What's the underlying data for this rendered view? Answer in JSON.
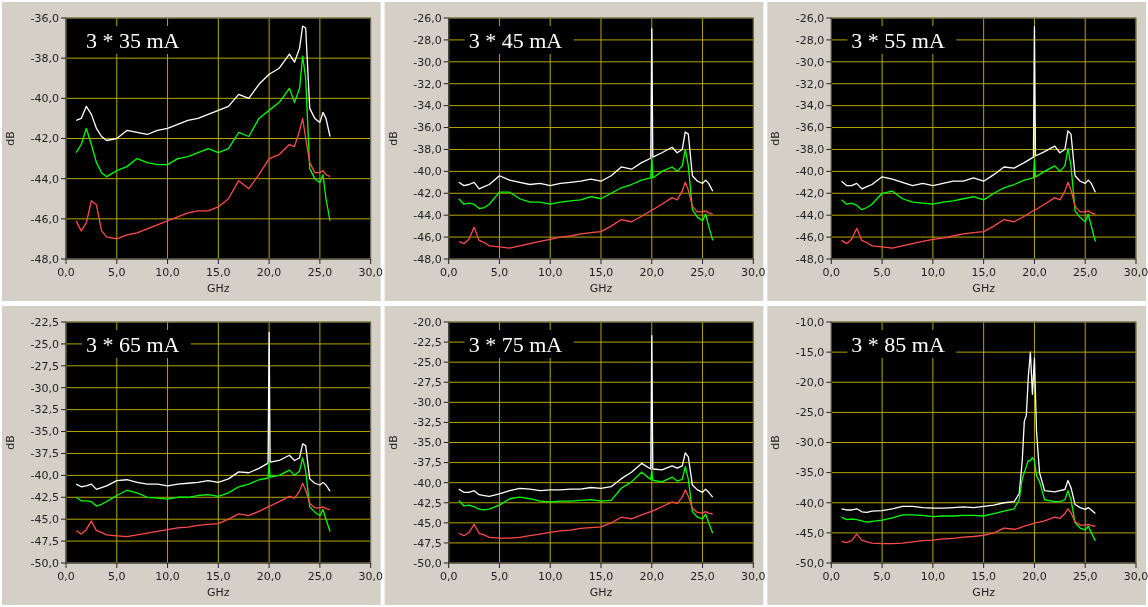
{
  "chart_data": [
    {
      "type": "line",
      "title": "3 * 35 mA",
      "xlabel": "GHz",
      "ylabel": "dB",
      "grid": true,
      "marker": "none",
      "line_style": "solid",
      "xlim": [
        0,
        30
      ],
      "xticks": [
        {
          "value": 0,
          "label": "0,0"
        },
        {
          "value": 5,
          "label": "5,0"
        },
        {
          "value": 10,
          "label": "10,0"
        },
        {
          "value": 15,
          "label": "15,0"
        },
        {
          "value": 20,
          "label": "20,0"
        },
        {
          "value": 25,
          "label": "25,0"
        },
        {
          "value": 30,
          "label": "30,0"
        }
      ],
      "ylim": [
        -48,
        -36
      ],
      "yticks": [
        {
          "value": -48,
          "label": "-48,0"
        },
        {
          "value": -46,
          "label": "-46,0"
        },
        {
          "value": -44,
          "label": "-44,0"
        },
        {
          "value": -42,
          "label": "-42,0"
        },
        {
          "value": -40,
          "label": "-40,0"
        },
        {
          "value": -38,
          "label": "-38,0"
        },
        {
          "value": -36,
          "label": "-36,0"
        }
      ],
      "x": [
        1,
        1.5,
        2,
        2.5,
        3,
        3.5,
        4,
        5,
        6,
        7,
        8,
        9,
        10,
        11,
        12,
        13,
        14,
        15,
        16,
        17,
        18,
        19,
        20,
        21,
        22,
        22.5,
        23,
        23.3,
        23.6,
        24,
        24.5,
        25,
        25.3,
        25.6,
        26
      ],
      "series": [
        {
          "color": "#ffffff",
          "values": [
            -41.1,
            -41.0,
            -40.4,
            -40.8,
            -41.5,
            -41.9,
            -42.1,
            -42.0,
            -41.6,
            -41.7,
            -41.8,
            -41.6,
            -41.5,
            -41.3,
            -41.1,
            -41.0,
            -40.8,
            -40.6,
            -40.4,
            -39.8,
            -40.0,
            -39.3,
            -38.8,
            -38.5,
            -37.8,
            -38.2,
            -37.5,
            -36.4,
            -36.5,
            -40.5,
            -41.0,
            -41.2,
            -40.7,
            -41.0,
            -41.9
          ]
        },
        {
          "color": "#00ff00",
          "values": [
            -42.7,
            -42.3,
            -41.5,
            -42.3,
            -43.2,
            -43.7,
            -43.9,
            -43.6,
            -43.4,
            -43.0,
            -43.2,
            -43.3,
            -43.3,
            -43.0,
            -42.9,
            -42.7,
            -42.5,
            -42.7,
            -42.5,
            -41.7,
            -41.9,
            -41.0,
            -40.6,
            -40.2,
            -39.5,
            -40.2,
            -39.5,
            -37.9,
            -39.0,
            -43.5,
            -44.0,
            -44.2,
            -43.8,
            -45.0,
            -46.1
          ]
        },
        {
          "color": "#ff4a4a",
          "values": [
            -46.1,
            -46.6,
            -46.2,
            -45.1,
            -45.3,
            -46.6,
            -46.9,
            -47.0,
            -46.8,
            -46.7,
            -46.5,
            -46.3,
            -46.1,
            -45.9,
            -45.7,
            -45.6,
            -45.6,
            -45.4,
            -45.0,
            -44.1,
            -44.5,
            -43.8,
            -43.0,
            -42.8,
            -42.3,
            -42.4,
            -41.6,
            -41.0,
            -42.0,
            -43.2,
            -43.7,
            -43.7,
            -43.6,
            -43.8,
            -43.9
          ]
        }
      ]
    },
    {
      "type": "line",
      "title": "3 * 45 mA",
      "xlabel": "GHz",
      "ylabel": "dB",
      "grid": true,
      "marker": "none",
      "line_style": "solid",
      "xlim": [
        0,
        30
      ],
      "xticks": [
        {
          "value": 0,
          "label": "0,0"
        },
        {
          "value": 5,
          "label": "5,0"
        },
        {
          "value": 10,
          "label": "10,0"
        },
        {
          "value": 15,
          "label": "15,0"
        },
        {
          "value": 20,
          "label": "20,0"
        },
        {
          "value": 25,
          "label": "25,0"
        },
        {
          "value": 30,
          "label": "30,0"
        }
      ],
      "ylim": [
        -48,
        -26
      ],
      "yticks": [
        {
          "value": -48,
          "label": "-48,0"
        },
        {
          "value": -46,
          "label": "-46,0"
        },
        {
          "value": -44,
          "label": "-44,0"
        },
        {
          "value": -42,
          "label": "-42,0"
        },
        {
          "value": -40,
          "label": "-40,0"
        },
        {
          "value": -38,
          "label": "-38,0"
        },
        {
          "value": -36,
          "label": "-36,0"
        },
        {
          "value": -34,
          "label": "-34,0"
        },
        {
          "value": -32,
          "label": "-32,0"
        },
        {
          "value": -30,
          "label": "-30,0"
        },
        {
          "value": -28,
          "label": "-28,0"
        },
        {
          "value": -26,
          "label": "-26,0"
        }
      ],
      "x": [
        1,
        1.5,
        2,
        2.5,
        3,
        3.5,
        4,
        5,
        6,
        7,
        8,
        9,
        10,
        11,
        12,
        13,
        14,
        15,
        16,
        17,
        18,
        19,
        19.9,
        20,
        20.1,
        21,
        22,
        22.5,
        23,
        23.3,
        23.6,
        24,
        24.5,
        25,
        25.3,
        25.6,
        26
      ],
      "series": [
        {
          "color": "#ffffff",
          "values": [
            -41.0,
            -41.3,
            -41.2,
            -41.0,
            -41.6,
            -41.4,
            -41.2,
            -40.4,
            -40.8,
            -41.0,
            -41.2,
            -41.1,
            -41.3,
            -41.1,
            -41.0,
            -40.9,
            -40.7,
            -40.9,
            -40.4,
            -39.6,
            -39.8,
            -39.2,
            -38.8,
            -27.0,
            -38.7,
            -38.3,
            -37.8,
            -38.3,
            -38.0,
            -36.4,
            -36.6,
            -40.4,
            -40.9,
            -41.1,
            -40.8,
            -41.1,
            -41.8
          ]
        },
        {
          "color": "#00ff00",
          "values": [
            -42.5,
            -43.0,
            -42.9,
            -43.0,
            -43.4,
            -43.3,
            -43.0,
            -41.9,
            -41.9,
            -42.5,
            -42.8,
            -42.8,
            -43.0,
            -42.8,
            -42.7,
            -42.6,
            -42.3,
            -42.5,
            -42.0,
            -41.5,
            -41.2,
            -40.8,
            -40.6,
            -38.7,
            -40.6,
            -40.0,
            -39.6,
            -40.0,
            -39.5,
            -38.0,
            -39.5,
            -43.5,
            -44.2,
            -44.5,
            -43.9,
            -45.0,
            -46.3
          ]
        },
        {
          "color": "#ff4a4a",
          "values": [
            -46.4,
            -46.6,
            -46.2,
            -45.1,
            -46.3,
            -46.5,
            -46.8,
            -46.9,
            -47.0,
            -46.8,
            -46.6,
            -46.4,
            -46.2,
            -46.0,
            -45.9,
            -45.7,
            -45.6,
            -45.5,
            -45.0,
            -44.4,
            -44.6,
            -44.1,
            -43.6,
            -43.5,
            -43.5,
            -43.0,
            -42.4,
            -42.6,
            -41.8,
            -41.0,
            -41.7,
            -43.2,
            -43.7,
            -43.7,
            -43.6,
            -43.8,
            -43.9
          ]
        }
      ]
    },
    {
      "type": "line",
      "title": "3 * 55 mA",
      "xlabel": "GHz",
      "ylabel": "dB",
      "grid": true,
      "marker": "none",
      "line_style": "solid",
      "xlim": [
        0,
        30
      ],
      "xticks": [
        {
          "value": 0,
          "label": "0,0"
        },
        {
          "value": 5,
          "label": "5,0"
        },
        {
          "value": 10,
          "label": "10,0"
        },
        {
          "value": 15,
          "label": "15,0"
        },
        {
          "value": 20,
          "label": "20,0"
        },
        {
          "value": 25,
          "label": "25,0"
        },
        {
          "value": 30,
          "label": "30,0"
        }
      ],
      "ylim": [
        -48,
        -26
      ],
      "yticks": [
        {
          "value": -48,
          "label": "-48,0"
        },
        {
          "value": -46,
          "label": "-46,0"
        },
        {
          "value": -44,
          "label": "-44,0"
        },
        {
          "value": -42,
          "label": "-42,0"
        },
        {
          "value": -40,
          "label": "-40,0"
        },
        {
          "value": -38,
          "label": "-38,0"
        },
        {
          "value": -36,
          "label": "-36,0"
        },
        {
          "value": -34,
          "label": "-34,0"
        },
        {
          "value": -32,
          "label": "-32,0"
        },
        {
          "value": -30,
          "label": "-30,0"
        },
        {
          "value": -28,
          "label": "-28,0"
        },
        {
          "value": -26,
          "label": "-26,0"
        }
      ],
      "x": [
        1,
        1.5,
        2,
        2.5,
        3,
        3.5,
        4,
        5,
        6,
        7,
        8,
        9,
        10,
        11,
        12,
        13,
        14,
        15,
        16,
        17,
        18,
        19,
        19.9,
        20,
        20.1,
        21,
        22,
        22.5,
        23,
        23.3,
        23.6,
        24,
        24.5,
        25,
        25.3,
        25.6,
        26
      ],
      "series": [
        {
          "color": "#ffffff",
          "values": [
            -40.9,
            -41.3,
            -41.3,
            -41.1,
            -41.6,
            -41.4,
            -41.2,
            -40.5,
            -40.7,
            -41.0,
            -41.3,
            -41.1,
            -41.3,
            -41.1,
            -40.9,
            -40.9,
            -40.6,
            -40.9,
            -40.3,
            -39.6,
            -39.7,
            -39.2,
            -38.7,
            -26.8,
            -38.6,
            -38.2,
            -37.7,
            -38.3,
            -38.0,
            -36.3,
            -36.6,
            -40.4,
            -40.9,
            -41.1,
            -40.8,
            -41.1,
            -41.9
          ]
        },
        {
          "color": "#00ff00",
          "values": [
            -42.6,
            -43.0,
            -42.9,
            -43.1,
            -43.5,
            -43.3,
            -43.0,
            -42.0,
            -41.8,
            -42.5,
            -42.8,
            -42.9,
            -43.0,
            -42.8,
            -42.7,
            -42.5,
            -42.3,
            -42.6,
            -42.0,
            -41.5,
            -41.2,
            -40.8,
            -40.6,
            -38.9,
            -40.5,
            -40.0,
            -39.5,
            -40.0,
            -39.5,
            -37.9,
            -39.5,
            -43.6,
            -44.2,
            -44.6,
            -43.9,
            -45.0,
            -46.4
          ]
        },
        {
          "color": "#ff4a4a",
          "values": [
            -46.3,
            -46.6,
            -46.2,
            -45.2,
            -46.3,
            -46.5,
            -46.8,
            -46.9,
            -47.0,
            -46.8,
            -46.6,
            -46.4,
            -46.2,
            -46.1,
            -45.9,
            -45.7,
            -45.6,
            -45.5,
            -45.0,
            -44.4,
            -44.6,
            -44.1,
            -43.6,
            -43.5,
            -43.5,
            -43.0,
            -42.4,
            -42.6,
            -41.8,
            -41.0,
            -41.7,
            -43.2,
            -43.7,
            -43.7,
            -43.6,
            -43.8,
            -43.9
          ]
        }
      ]
    },
    {
      "type": "line",
      "title": "3 * 65 mA",
      "xlabel": "GHz",
      "ylabel": "dB",
      "grid": true,
      "marker": "none",
      "line_style": "solid",
      "xlim": [
        0,
        30
      ],
      "xticks": [
        {
          "value": 0,
          "label": "0,0"
        },
        {
          "value": 5,
          "label": "5,0"
        },
        {
          "value": 10,
          "label": "10,0"
        },
        {
          "value": 15,
          "label": "15,0"
        },
        {
          "value": 20,
          "label": "20,0"
        },
        {
          "value": 25,
          "label": "25,0"
        },
        {
          "value": 30,
          "label": "30,0"
        }
      ],
      "ylim": [
        -50,
        -22.5
      ],
      "yticks": [
        {
          "value": -50,
          "label": "-50,0"
        },
        {
          "value": -47.5,
          "label": "-47,5"
        },
        {
          "value": -45,
          "label": "-45,0"
        },
        {
          "value": -42.5,
          "label": "-42,5"
        },
        {
          "value": -40,
          "label": "-40,0"
        },
        {
          "value": -37.5,
          "label": "-37,5"
        },
        {
          "value": -35,
          "label": "-35,0"
        },
        {
          "value": -32.5,
          "label": "-32,5"
        },
        {
          "value": -30,
          "label": "-30,0"
        },
        {
          "value": -27.5,
          "label": "-27,5"
        },
        {
          "value": -25,
          "label": "-25,0"
        },
        {
          "value": -22.5,
          "label": "-22,5"
        }
      ],
      "x": [
        1,
        1.5,
        2,
        2.5,
        3,
        3.5,
        4,
        5,
        6,
        7,
        8,
        9,
        10,
        11,
        12,
        13,
        14,
        15,
        16,
        17,
        18,
        19,
        19.9,
        20,
        20.1,
        21,
        22,
        22.5,
        23,
        23.3,
        23.6,
        24,
        24.5,
        25,
        25.3,
        25.6,
        26
      ],
      "series": [
        {
          "color": "#ffffff",
          "values": [
            -41.0,
            -41.3,
            -41.2,
            -41.0,
            -41.6,
            -41.4,
            -41.2,
            -40.6,
            -40.5,
            -40.8,
            -41.0,
            -41.0,
            -41.2,
            -41.0,
            -40.9,
            -40.8,
            -40.6,
            -40.8,
            -40.4,
            -39.6,
            -39.7,
            -39.2,
            -38.6,
            -23.7,
            -38.5,
            -38.3,
            -37.7,
            -38.3,
            -38.0,
            -36.4,
            -36.6,
            -40.4,
            -40.9,
            -41.1,
            -40.8,
            -41.1,
            -41.8
          ]
        },
        {
          "color": "#00ff00",
          "values": [
            -42.5,
            -42.9,
            -42.9,
            -43.0,
            -43.5,
            -43.3,
            -43.0,
            -42.3,
            -41.7,
            -42.0,
            -42.5,
            -42.6,
            -42.7,
            -42.5,
            -42.5,
            -42.3,
            -42.2,
            -42.4,
            -42.0,
            -41.3,
            -41.0,
            -40.5,
            -40.3,
            -38.5,
            -40.2,
            -40.0,
            -39.4,
            -40.0,
            -39.5,
            -38.0,
            -39.5,
            -43.6,
            -44.2,
            -44.6,
            -43.9,
            -45.0,
            -46.4
          ]
        },
        {
          "color": "#ff4a4a",
          "values": [
            -46.3,
            -46.7,
            -46.2,
            -45.2,
            -46.3,
            -46.5,
            -46.8,
            -46.9,
            -47.0,
            -46.8,
            -46.6,
            -46.4,
            -46.2,
            -46.0,
            -45.9,
            -45.7,
            -45.6,
            -45.5,
            -45.0,
            -44.4,
            -44.6,
            -44.1,
            -43.6,
            -43.5,
            -43.5,
            -43.0,
            -42.4,
            -42.6,
            -41.8,
            -40.9,
            -41.7,
            -43.2,
            -43.7,
            -43.7,
            -43.6,
            -43.8,
            -43.9
          ]
        }
      ]
    },
    {
      "type": "line",
      "title": "3 * 75 mA",
      "xlabel": "GHz",
      "ylabel": "dB",
      "grid": true,
      "marker": "none",
      "line_style": "solid",
      "xlim": [
        0,
        30
      ],
      "xticks": [
        {
          "value": 0,
          "label": "0,0"
        },
        {
          "value": 5,
          "label": "5,0"
        },
        {
          "value": 10,
          "label": "10,0"
        },
        {
          "value": 15,
          "label": "15,0"
        },
        {
          "value": 20,
          "label": "20,0"
        },
        {
          "value": 25,
          "label": "25,0"
        },
        {
          "value": 30,
          "label": "30,0"
        }
      ],
      "ylim": [
        -50,
        -20
      ],
      "yticks": [
        {
          "value": -50,
          "label": "-50,0"
        },
        {
          "value": -47.5,
          "label": "-47,5"
        },
        {
          "value": -45,
          "label": "-45,0"
        },
        {
          "value": -42.5,
          "label": "-42,5"
        },
        {
          "value": -40,
          "label": "-40,0"
        },
        {
          "value": -37.5,
          "label": "-37,5"
        },
        {
          "value": -35,
          "label": "-35,0"
        },
        {
          "value": -32.5,
          "label": "-32,5"
        },
        {
          "value": -30,
          "label": "-30,0"
        },
        {
          "value": -27.5,
          "label": "-27,5"
        },
        {
          "value": -25,
          "label": "-25,0"
        },
        {
          "value": -22.5,
          "label": "-22,5"
        },
        {
          "value": -20,
          "label": "-20,0"
        }
      ],
      "x": [
        1,
        1.5,
        2,
        2.5,
        3,
        3.5,
        4,
        5,
        6,
        7,
        8,
        9,
        10,
        11,
        12,
        13,
        14,
        15,
        16,
        17,
        18,
        19,
        19.9,
        20,
        20.1,
        21,
        22,
        22.5,
        23,
        23.3,
        23.6,
        24,
        24.5,
        25,
        25.3,
        25.6,
        26
      ],
      "series": [
        {
          "color": "#ffffff",
          "values": [
            -40.8,
            -41.2,
            -41.2,
            -41.0,
            -41.5,
            -41.6,
            -41.7,
            -41.4,
            -41.0,
            -40.7,
            -40.8,
            -41.0,
            -40.9,
            -40.9,
            -40.8,
            -40.8,
            -40.6,
            -40.7,
            -40.5,
            -39.5,
            -38.7,
            -37.6,
            -38.3,
            -21.7,
            -38.3,
            -38.4,
            -37.9,
            -38.2,
            -37.9,
            -36.3,
            -36.8,
            -40.3,
            -40.9,
            -41.2,
            -40.8,
            -41.2,
            -41.8
          ]
        },
        {
          "color": "#00ff00",
          "values": [
            -42.2,
            -42.9,
            -42.8,
            -43.0,
            -43.3,
            -43.4,
            -43.3,
            -42.8,
            -42.0,
            -41.8,
            -42.0,
            -42.3,
            -42.4,
            -42.3,
            -42.3,
            -42.2,
            -42.1,
            -42.3,
            -42.2,
            -40.7,
            -39.9,
            -38.7,
            -39.6,
            -38.5,
            -39.7,
            -39.9,
            -39.3,
            -39.8,
            -39.6,
            -38.0,
            -39.6,
            -43.6,
            -44.3,
            -44.5,
            -43.9,
            -45.0,
            -46.3
          ]
        },
        {
          "color": "#ff4a4a",
          "values": [
            -46.3,
            -46.6,
            -46.2,
            -45.2,
            -46.3,
            -46.5,
            -46.8,
            -46.9,
            -46.9,
            -46.8,
            -46.6,
            -46.4,
            -46.2,
            -46.0,
            -45.9,
            -45.7,
            -45.6,
            -45.5,
            -45.0,
            -44.3,
            -44.5,
            -44.0,
            -43.6,
            -43.5,
            -43.5,
            -43.0,
            -42.4,
            -42.6,
            -41.8,
            -40.9,
            -41.7,
            -43.2,
            -43.7,
            -43.8,
            -43.6,
            -43.8,
            -43.9
          ]
        }
      ]
    },
    {
      "type": "line",
      "title": "3 * 85 mA",
      "xlabel": "GHz",
      "ylabel": "dB",
      "grid": true,
      "marker": "none",
      "line_style": "solid",
      "xlim": [
        0,
        30
      ],
      "xticks": [
        {
          "value": 0,
          "label": "0,0"
        },
        {
          "value": 5,
          "label": "5,0"
        },
        {
          "value": 10,
          "label": "10,0"
        },
        {
          "value": 15,
          "label": "15,0"
        },
        {
          "value": 20,
          "label": "20,0"
        },
        {
          "value": 25,
          "label": "25,0"
        },
        {
          "value": 30,
          "label": "30,0"
        }
      ],
      "ylim": [
        -50,
        -10
      ],
      "yticks": [
        {
          "value": -50,
          "label": "-50,0"
        },
        {
          "value": -45,
          "label": "-45,0"
        },
        {
          "value": -40,
          "label": "-40,0"
        },
        {
          "value": -35,
          "label": "-35,0"
        },
        {
          "value": -30,
          "label": "-30,0"
        },
        {
          "value": -25,
          "label": "-25,0"
        },
        {
          "value": -20,
          "label": "-20,0"
        },
        {
          "value": -15,
          "label": "-15,0"
        },
        {
          "value": -10,
          "label": "-10,0"
        }
      ],
      "x": [
        1,
        1.5,
        2,
        2.5,
        3,
        3.5,
        4,
        5,
        6,
        7,
        8,
        9,
        10,
        11,
        12,
        13,
        14,
        15,
        16,
        17,
        18,
        18.5,
        18.8,
        19,
        19.2,
        19.4,
        19.6,
        19.8,
        20,
        20.2,
        20.5,
        21,
        22,
        22.5,
        23,
        23.3,
        23.6,
        24,
        24.5,
        25,
        25.3,
        25.6,
        26
      ],
      "series": [
        {
          "color": "#ffffff",
          "values": [
            -41.0,
            -41.2,
            -41.2,
            -41.0,
            -41.5,
            -41.6,
            -41.4,
            -41.3,
            -41.0,
            -40.6,
            -40.6,
            -40.8,
            -40.9,
            -40.9,
            -40.8,
            -40.7,
            -40.8,
            -40.6,
            -40.4,
            -40.0,
            -39.8,
            -38.5,
            -33,
            -26.5,
            -25.5,
            -19,
            -15,
            -22,
            -16,
            -28,
            -35,
            -38.0,
            -38.2,
            -38.0,
            -37.8,
            -36.3,
            -37.5,
            -40.3,
            -40.8,
            -41.1,
            -40.8,
            -41.2,
            -41.8
          ]
        },
        {
          "color": "#00ff00",
          "values": [
            -42.4,
            -42.8,
            -42.7,
            -42.8,
            -43.0,
            -43.2,
            -43.1,
            -42.9,
            -42.5,
            -42.0,
            -42.0,
            -42.1,
            -42.3,
            -42.2,
            -42.2,
            -42.1,
            -42.1,
            -42.2,
            -41.8,
            -41.4,
            -41.0,
            -39.5,
            -36,
            -35,
            -34,
            -33,
            -33,
            -32.5,
            -33,
            -35.5,
            -36.5,
            -39.5,
            -39.8,
            -39.8,
            -39.5,
            -38.0,
            -39.5,
            -43.3,
            -44.2,
            -44.5,
            -43.9,
            -45.0,
            -46.3
          ]
        },
        {
          "color": "#ff4a4a",
          "values": [
            -46.4,
            -46.6,
            -46.3,
            -45.2,
            -46.2,
            -46.5,
            -46.7,
            -46.8,
            -46.8,
            -46.7,
            -46.5,
            -46.3,
            -46.2,
            -46.0,
            -45.9,
            -45.7,
            -45.6,
            -45.4,
            -45.0,
            -44.2,
            -44.4,
            -44.2,
            -44.0,
            -43.9,
            -43.8,
            -43.7,
            -43.6,
            -43.5,
            -43.4,
            -43.3,
            -43.2,
            -43.0,
            -42.4,
            -42.6,
            -41.8,
            -41.0,
            -41.7,
            -43.2,
            -43.7,
            -43.7,
            -43.6,
            -43.8,
            -43.9
          ]
        }
      ]
    }
  ]
}
